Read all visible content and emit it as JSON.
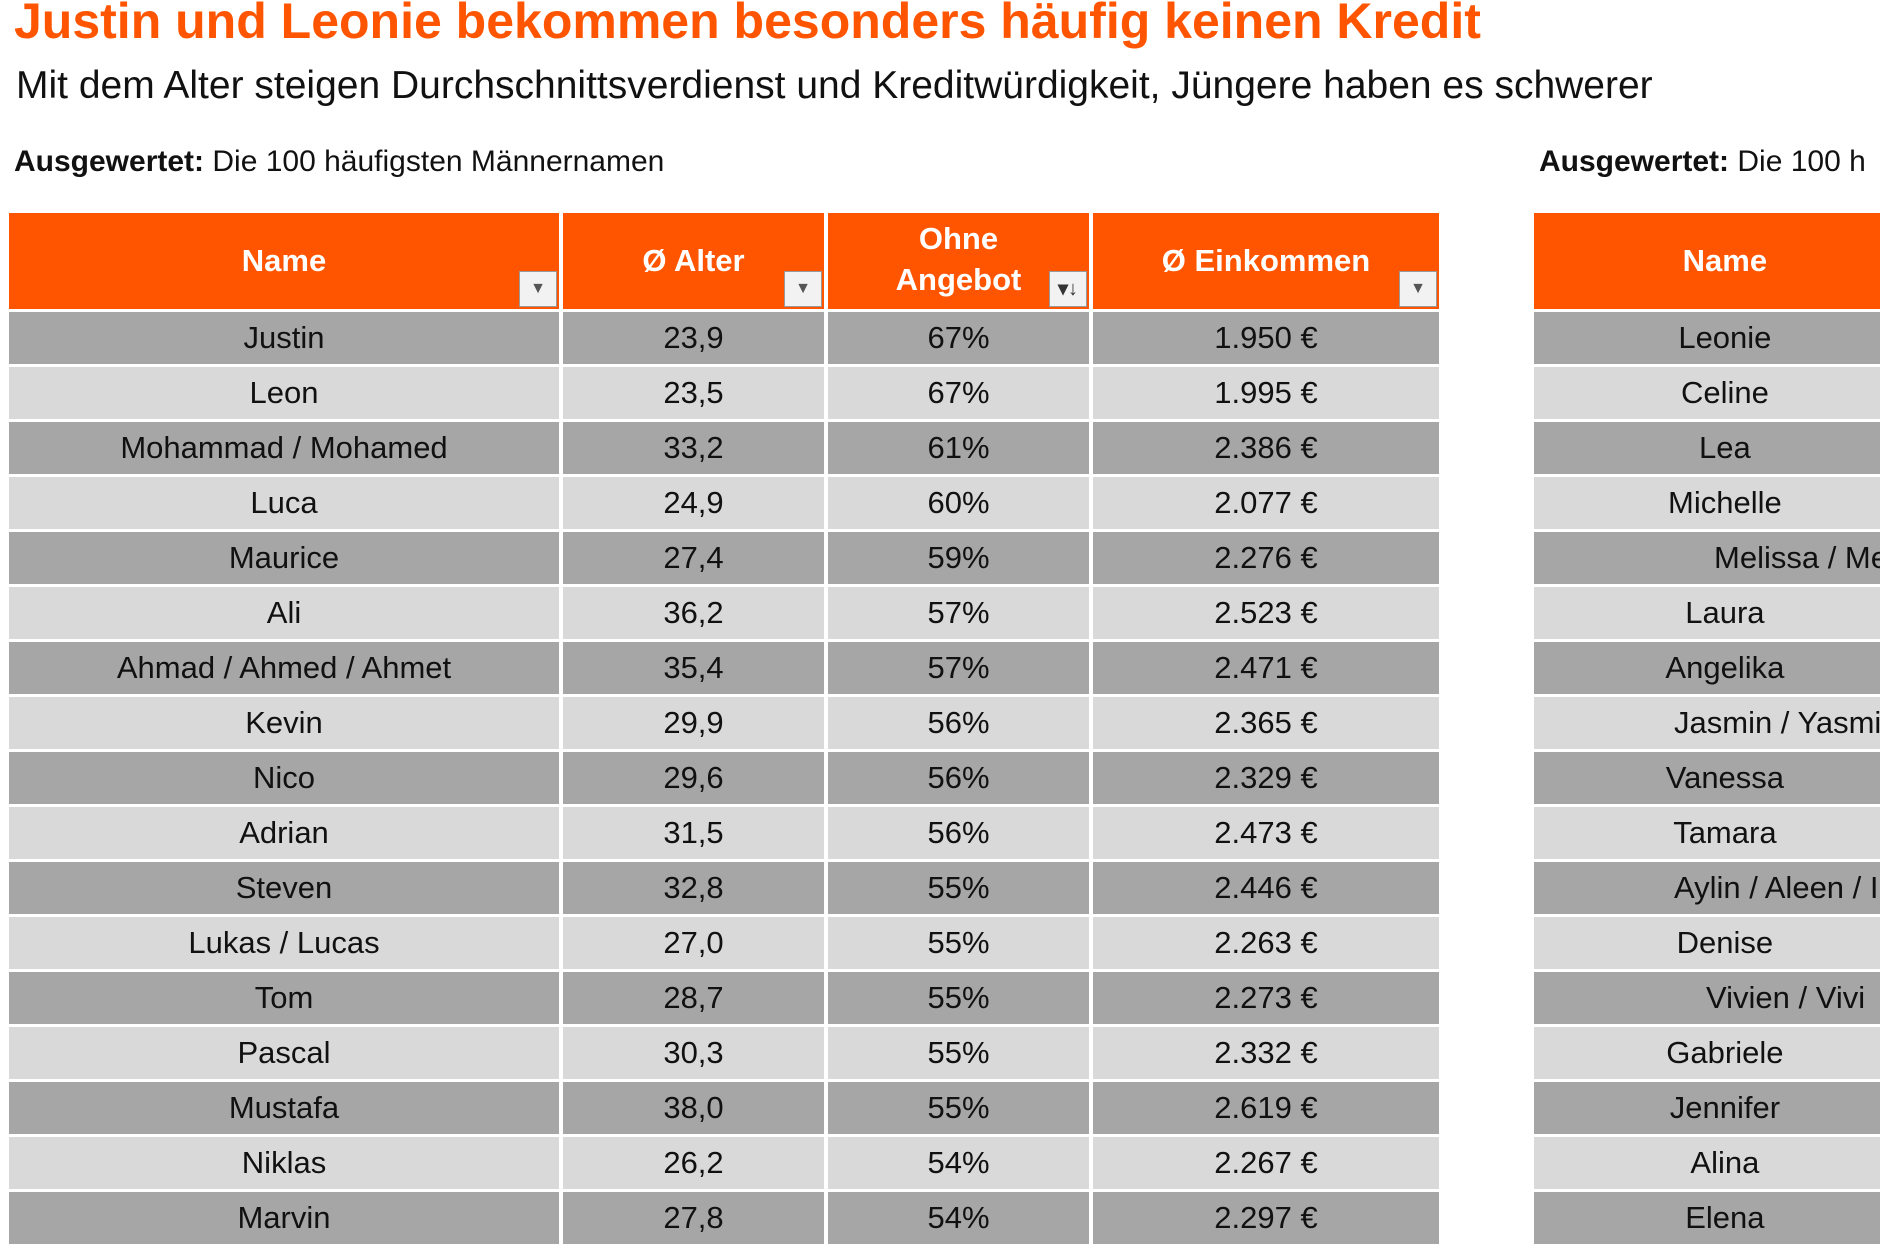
{
  "title": "Justin und Leonie bekommen besonders häufig keinen Kredit",
  "subtitle": "Mit dem Alter steigen Durchschnittsverdienst und Kreditwürdigkeit, Jüngere haben es schwerer",
  "accent_color": "#FF5500",
  "left_table": {
    "note_label": "Ausgewertet:",
    "note_text": " Die 100 häufigsten Männernamen",
    "headers": [
      "Name",
      "Ø Alter",
      "Ohne Angebot",
      "Ø Einkommen"
    ],
    "header_icons": [
      "filter-dropdown-icon",
      "filter-dropdown-icon",
      "sort-descending-icon",
      "filter-dropdown-icon"
    ],
    "rows": [
      [
        "Justin",
        "23,9",
        "67%",
        "1.950 €"
      ],
      [
        "Leon",
        "23,5",
        "67%",
        "1.995 €"
      ],
      [
        "Mohammad / Mohamed",
        "33,2",
        "61%",
        "2.386 €"
      ],
      [
        "Luca",
        "24,9",
        "60%",
        "2.077 €"
      ],
      [
        "Maurice",
        "27,4",
        "59%",
        "2.276 €"
      ],
      [
        "Ali",
        "36,2",
        "57%",
        "2.523 €"
      ],
      [
        "Ahmad / Ahmed / Ahmet",
        "35,4",
        "57%",
        "2.471 €"
      ],
      [
        "Kevin",
        "29,9",
        "56%",
        "2.365 €"
      ],
      [
        "Nico",
        "29,6",
        "56%",
        "2.329 €"
      ],
      [
        "Adrian",
        "31,5",
        "56%",
        "2.473 €"
      ],
      [
        "Steven",
        "32,8",
        "55%",
        "2.446 €"
      ],
      [
        "Lukas / Lucas",
        "27,0",
        "55%",
        "2.263 €"
      ],
      [
        "Tom",
        "28,7",
        "55%",
        "2.273 €"
      ],
      [
        "Pascal",
        "30,3",
        "55%",
        "2.332 €"
      ],
      [
        "Mustafa",
        "38,0",
        "55%",
        "2.619 €"
      ],
      [
        "Niklas",
        "26,2",
        "54%",
        "2.267 €"
      ],
      [
        "Marvin",
        "27,8",
        "54%",
        "2.297 €"
      ]
    ]
  },
  "right_table": {
    "note_label": "Ausgewertet:",
    "note_text": " Die 100 h",
    "headers": [
      "Name"
    ],
    "rows": [
      "Leonie",
      "Celine",
      "Lea",
      "Michelle",
      "Melissa / Me",
      "Laura",
      "Angelika",
      "Jasmin / Yasmin /",
      "Vanessa",
      "Tamara",
      "Aylin / Aleen / I",
      "Denise",
      "Vivien / Vivi",
      "Gabriele",
      "Jennifer",
      "Alina",
      "Elena"
    ]
  }
}
